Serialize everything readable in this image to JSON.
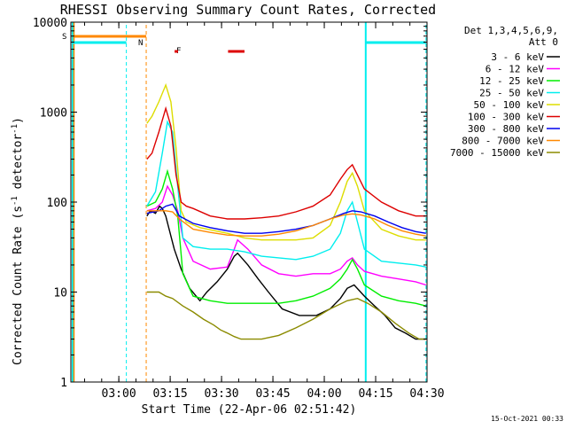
{
  "chart_data": {
    "type": "line",
    "title": "RHESSI Observing Summary Count Rates, Corrected",
    "xlabel": "Start Time (22-Apr-06 02:51:42)",
    "ylabel_main": "Corrected Count Rate (s",
    "ylabel_sup1": "-1",
    "ylabel_mid": " detector",
    "ylabel_sup2": "-1",
    "ylabel_end": ")",
    "yscale": "log",
    "ylim": [
      1,
      10000
    ],
    "xlim_minutes": [
      -5.7,
      98.3
    ],
    "x_ticks": [
      {
        "label": "03:00",
        "minute": 8.3
      },
      {
        "label": "03:15",
        "minute": 23.3
      },
      {
        "label": "03:30",
        "minute": 38.3
      },
      {
        "label": "03:45",
        "minute": 53.3
      },
      {
        "label": "04:00",
        "minute": 68.3
      },
      {
        "label": "04:15",
        "minute": 83.3
      },
      {
        "label": "04:30",
        "minute": 98.3
      }
    ],
    "y_ticks": [
      {
        "label": "1",
        "value": 1
      },
      {
        "label": "10",
        "value": 10
      },
      {
        "label": "100",
        "value": 100
      },
      {
        "label": "1000",
        "value": 1000
      },
      {
        "label": "10000",
        "value": 10000
      }
    ],
    "legend": {
      "header1": "Det 1,3,4,5,6,9,",
      "header2": "Att 0",
      "placement": "right"
    },
    "series": [
      {
        "name": "3 - 6 keV",
        "color": "#000000",
        "x": [
          16.5,
          17.5,
          19,
          20.2,
          21,
          22,
          23,
          24.5,
          26.5,
          29,
          32,
          34,
          37,
          40,
          42,
          43,
          46,
          49,
          52,
          56,
          61,
          66,
          70,
          73,
          75,
          77,
          80,
          83,
          86,
          89,
          92,
          95,
          98
        ],
        "y": [
          70,
          80,
          75,
          90,
          85,
          70,
          50,
          30,
          18,
          11,
          8,
          10,
          13,
          18,
          25,
          27,
          20,
          14,
          10,
          6.5,
          5.5,
          5.5,
          6.5,
          8.5,
          11,
          12,
          9,
          7,
          5.5,
          4,
          3.5,
          3,
          3
        ]
      },
      {
        "name": "6 - 12 keV",
        "color": "#ff00ff",
        "x": [
          16.5,
          19,
          21,
          22.5,
          24,
          25.5,
          27,
          30,
          35,
          40,
          42,
          43,
          46,
          50,
          55,
          60,
          65,
          70,
          73,
          75,
          76.5,
          78,
          80,
          85,
          90,
          95,
          98
        ],
        "y": [
          80,
          85,
          100,
          150,
          120,
          80,
          40,
          22,
          18,
          19,
          30,
          38,
          30,
          20,
          16,
          15,
          16,
          16,
          18,
          22,
          24,
          20,
          17,
          15,
          14,
          13,
          12
        ]
      },
      {
        "name": "12 - 25 keV",
        "color": "#00ee00",
        "x": [
          16.5,
          19,
          21,
          22.5,
          24,
          25.5,
          27,
          30,
          35,
          40,
          45,
          50,
          55,
          60,
          65,
          70,
          73,
          75,
          76.5,
          78,
          80,
          85,
          90,
          95,
          98
        ],
        "y": [
          90,
          100,
          140,
          220,
          140,
          70,
          16,
          9,
          8,
          7.5,
          7.5,
          7.5,
          7.5,
          8,
          9,
          11,
          14,
          18,
          23,
          18,
          12,
          9,
          8,
          7.5,
          7
        ]
      },
      {
        "name": "25 - 50 keV",
        "color": "#00eeee",
        "x": [
          16.5,
          19,
          21,
          22.5,
          24,
          25.5,
          27,
          30,
          35,
          40,
          45,
          50,
          55,
          60,
          65,
          70,
          73,
          75,
          76.5,
          78,
          80,
          85,
          90,
          95,
          98
        ],
        "y": [
          90,
          130,
          350,
          780,
          600,
          150,
          40,
          32,
          30,
          30,
          28,
          25,
          24,
          23,
          25,
          30,
          45,
          80,
          100,
          60,
          30,
          22,
          21,
          20,
          19
        ]
      },
      {
        "name": "50 - 100 keV",
        "color": "#dddd00",
        "x": [
          16.5,
          18,
          20,
          22,
          23.5,
          25,
          26.5,
          28,
          32,
          40,
          45,
          50,
          55,
          60,
          65,
          70,
          73,
          75,
          76.5,
          78,
          80,
          85,
          90,
          95,
          98
        ],
        "y": [
          750,
          900,
          1300,
          2000,
          1300,
          400,
          80,
          60,
          52,
          45,
          40,
          38,
          38,
          38,
          40,
          55,
          100,
          170,
          210,
          150,
          80,
          50,
          42,
          38,
          38
        ]
      },
      {
        "name": "100 - 300 keV",
        "color": "#dd0000",
        "x": [
          16.5,
          18,
          20,
          22,
          23.5,
          25,
          26.5,
          28,
          30,
          35,
          40,
          45,
          50,
          55,
          60,
          65,
          70,
          73,
          75,
          76.5,
          78,
          80,
          85,
          90,
          95,
          98
        ],
        "y": [
          300,
          350,
          600,
          1100,
          700,
          200,
          100,
          90,
          85,
          70,
          65,
          65,
          67,
          70,
          78,
          90,
          120,
          180,
          230,
          260,
          200,
          140,
          100,
          80,
          70,
          70
        ]
      },
      {
        "name": "300 - 800 keV",
        "color": "#0000ee",
        "x": [
          16.5,
          20,
          22,
          24,
          26,
          30,
          35,
          40,
          45,
          50,
          55,
          60,
          65,
          70,
          74,
          76.5,
          79,
          83,
          87,
          91,
          95,
          98
        ],
        "y": [
          75,
          80,
          90,
          95,
          70,
          58,
          52,
          48,
          45,
          45,
          47,
          50,
          55,
          65,
          75,
          80,
          78,
          70,
          60,
          52,
          47,
          45
        ]
      },
      {
        "name": "800 - 7000 keV",
        "color": "#ff8800",
        "x": [
          16.5,
          20,
          22,
          24,
          26,
          30,
          35,
          40,
          45,
          50,
          55,
          60,
          65,
          70,
          74,
          76.5,
          79,
          83,
          87,
          91,
          95,
          98
        ],
        "y": [
          80,
          80,
          80,
          78,
          65,
          50,
          46,
          43,
          42,
          42,
          44,
          48,
          55,
          65,
          72,
          74,
          72,
          65,
          55,
          48,
          44,
          42
        ]
      },
      {
        "name": "7000 - 15000 keV",
        "color": "#8b8b00",
        "x": [
          16.5,
          20,
          22,
          24,
          27,
          30,
          33,
          36,
          38,
          40,
          42,
          44,
          46,
          50,
          55,
          60,
          65,
          70,
          75,
          78,
          81,
          85,
          89,
          93,
          96,
          98
        ],
        "y": [
          10,
          10,
          9,
          8.5,
          7,
          6,
          5,
          4.3,
          3.8,
          3.5,
          3.2,
          3,
          3,
          3,
          3.3,
          4,
          5,
          6.5,
          8,
          8.5,
          7.5,
          6,
          4.5,
          3.5,
          3,
          3
        ]
      }
    ],
    "annotations": {
      "saa_letter": "S",
      "night_letter": "N",
      "flare_letter": "F"
    },
    "footer_date": "15-Oct-2021 00:33",
    "colors": {
      "saa": "#ff8800",
      "night": "#00eeee",
      "flare": "#dd0000"
    }
  }
}
